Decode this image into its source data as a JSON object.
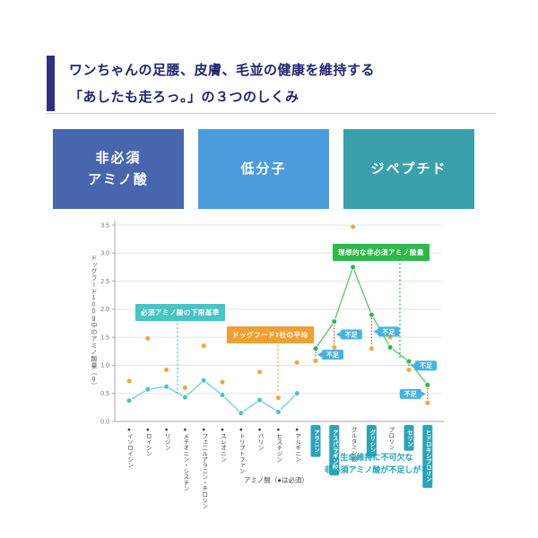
{
  "header": {
    "title_line1": "ワンちゃんの足腰、皮膚、毛並の健康を維持する",
    "title_line2": "「あしたも走ろっ。」の３つのしくみ",
    "title_color": "#20246e",
    "accent_color": "#2d3184"
  },
  "feature_boxes": [
    {
      "line1": "非必須",
      "line2": "アミノ酸",
      "color": "#4866ad"
    },
    {
      "line1": "低分子",
      "line2": "",
      "color": "#4a9cdd"
    },
    {
      "line1": "ジペプチド",
      "line2": "",
      "color": "#3aa0ab"
    }
  ],
  "chart_data": {
    "type": "line",
    "ylabel": "ドッグフード100g中のアミノ酸量（g）",
    "caption": "アミノ酸（●は必須）",
    "ylim": [
      0,
      3.5
    ],
    "yticks": [
      "0.0",
      "0.5",
      "1.0",
      "1.5",
      "2.0",
      "2.5",
      "3.0",
      "3.5"
    ],
    "grid": true,
    "categories": [
      {
        "label": "●イソロイシン",
        "essential": true,
        "highlight": false
      },
      {
        "label": "●ロイシン",
        "essential": true,
        "highlight": false
      },
      {
        "label": "●リジン",
        "essential": true,
        "highlight": false
      },
      {
        "label": "●メチオニン・シスチン",
        "essential": true,
        "highlight": false
      },
      {
        "label": "●フェニルアラニン・チロシン",
        "essential": true,
        "highlight": false
      },
      {
        "label": "●スレオニン",
        "essential": true,
        "highlight": false
      },
      {
        "label": "●トリプトファン",
        "essential": true,
        "highlight": false
      },
      {
        "label": "●バリン",
        "essential": true,
        "highlight": false
      },
      {
        "label": "●ヒスチジン",
        "essential": true,
        "highlight": false
      },
      {
        "label": "●アルギニン",
        "essential": true,
        "highlight": false
      },
      {
        "label": "アラニン",
        "essential": false,
        "highlight": true
      },
      {
        "label": "アスパラギン酸",
        "essential": false,
        "highlight": true
      },
      {
        "label": "グルタミン酸",
        "essential": false,
        "highlight": false
      },
      {
        "label": "グリシン",
        "essential": false,
        "highlight": true
      },
      {
        "label": "プロリン",
        "essential": false,
        "highlight": false
      },
      {
        "label": "セリン",
        "essential": false,
        "highlight": true
      },
      {
        "label": "ヒドロキシプロリン",
        "essential": false,
        "highlight": true
      }
    ],
    "series": [
      {
        "name": "必須アミノ酸の下限基準",
        "style": "line",
        "color": "#4cc3c3",
        "values": [
          0.37,
          0.57,
          0.62,
          0.43,
          0.73,
          0.47,
          0.15,
          0.38,
          0.17,
          0.5,
          null,
          null,
          null,
          null,
          null,
          null,
          null
        ]
      },
      {
        "name": "ドッグフード7社の平均",
        "style": "scatter",
        "color": "#f0a836",
        "values": [
          0.72,
          1.48,
          0.92,
          0.6,
          1.35,
          0.7,
          0.15,
          0.88,
          0.42,
          1.05,
          1.08,
          1.32,
          3.47,
          1.3,
          1.5,
          0.92,
          0.33
        ]
      },
      {
        "name": "理想的な非必須アミノ酸量",
        "style": "line",
        "color": "#2eb44b",
        "values": [
          null,
          null,
          null,
          null,
          null,
          null,
          null,
          null,
          null,
          null,
          1.3,
          1.78,
          2.75,
          1.9,
          1.32,
          1.07,
          0.65
        ]
      }
    ],
    "shortage": {
      "label": "不足",
      "color": "#41b4e4",
      "connector_color": "#cc4433",
      "items": [
        {
          "category": "アラニン",
          "side": "right"
        },
        {
          "category": "アスパラギン酸",
          "side": "right"
        },
        {
          "category": "グリシン",
          "side": "right"
        },
        {
          "category": "セリン",
          "side": "right"
        },
        {
          "category": "ヒドロキシプロリン",
          "side": "left"
        }
      ]
    },
    "annotations": {
      "limit": {
        "text": "必須アミノ酸の下限基準",
        "color": "#45c5c5"
      },
      "avg": {
        "text": "ドッグフード7社の平均",
        "color": "#f0a030"
      },
      "ideal": {
        "text": "理想的な非必須アミノ酸量",
        "color": "#2db848"
      }
    },
    "note_line1": "生命維持に不可欠な",
    "note_line2": "非必須アミノ酸が不足しがち",
    "note_color": "#18a4ba",
    "highlight_box_color": "#2ca4ba"
  }
}
